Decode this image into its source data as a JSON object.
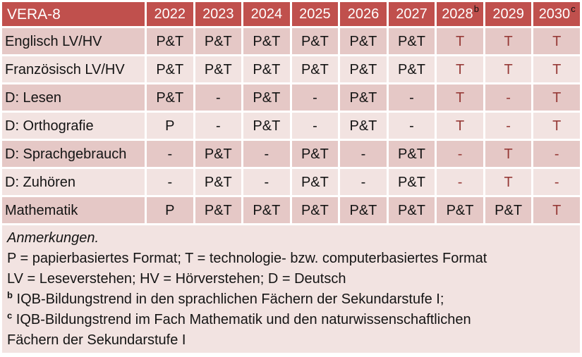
{
  "table": {
    "header": {
      "title": "VERA-8",
      "years": [
        {
          "label": "2022",
          "sup": ""
        },
        {
          "label": "2023",
          "sup": ""
        },
        {
          "label": "2024",
          "sup": ""
        },
        {
          "label": "2025",
          "sup": ""
        },
        {
          "label": "2026",
          "sup": ""
        },
        {
          "label": "2027",
          "sup": ""
        },
        {
          "label": "2028",
          "sup": "b"
        },
        {
          "label": "2029",
          "sup": ""
        },
        {
          "label": "2030",
          "sup": "c"
        }
      ]
    },
    "rows": [
      {
        "label": "Englisch LV/HV",
        "cells": [
          {
            "text": "P&T",
            "red": false
          },
          {
            "text": "P&T",
            "red": false
          },
          {
            "text": "P&T",
            "red": false
          },
          {
            "text": "P&T",
            "red": false
          },
          {
            "text": "P&T",
            "red": false
          },
          {
            "text": "P&T",
            "red": false
          },
          {
            "text": "T",
            "red": true
          },
          {
            "text": "T",
            "red": true
          },
          {
            "text": "T",
            "red": true
          }
        ]
      },
      {
        "label": "Französisch LV/HV",
        "cells": [
          {
            "text": "P&T",
            "red": false
          },
          {
            "text": "P&T",
            "red": false
          },
          {
            "text": "P&T",
            "red": false
          },
          {
            "text": "P&T",
            "red": false
          },
          {
            "text": "P&T",
            "red": false
          },
          {
            "text": "P&T",
            "red": false
          },
          {
            "text": "T",
            "red": true
          },
          {
            "text": "T",
            "red": true
          },
          {
            "text": "T",
            "red": true
          }
        ]
      },
      {
        "label": "D: Lesen",
        "cells": [
          {
            "text": "P&T",
            "red": false
          },
          {
            "text": "-",
            "red": false
          },
          {
            "text": "P&T",
            "red": false
          },
          {
            "text": "-",
            "red": false
          },
          {
            "text": "P&T",
            "red": false
          },
          {
            "text": "-",
            "red": false
          },
          {
            "text": "T",
            "red": true
          },
          {
            "text": "-",
            "red": true
          },
          {
            "text": "T",
            "red": true
          }
        ]
      },
      {
        "label": "D: Orthografie",
        "cells": [
          {
            "text": "P",
            "red": false
          },
          {
            "text": "-",
            "red": false
          },
          {
            "text": "P&T",
            "red": false
          },
          {
            "text": "-",
            "red": false
          },
          {
            "text": "P&T",
            "red": false
          },
          {
            "text": "-",
            "red": false
          },
          {
            "text": "T",
            "red": true
          },
          {
            "text": "-",
            "red": true
          },
          {
            "text": "T",
            "red": true
          }
        ]
      },
      {
        "label": "D: Sprachgebrauch",
        "cells": [
          {
            "text": "-",
            "red": false
          },
          {
            "text": "P&T",
            "red": false
          },
          {
            "text": "-",
            "red": false
          },
          {
            "text": "P&T",
            "red": false
          },
          {
            "text": "-",
            "red": false
          },
          {
            "text": "P&T",
            "red": false
          },
          {
            "text": "-",
            "red": true
          },
          {
            "text": "T",
            "red": true
          },
          {
            "text": "-",
            "red": true
          }
        ]
      },
      {
        "label": "D: Zuhören",
        "cells": [
          {
            "text": "-",
            "red": false
          },
          {
            "text": "P&T",
            "red": false
          },
          {
            "text": "-",
            "red": false
          },
          {
            "text": "P&T",
            "red": false
          },
          {
            "text": "-",
            "red": false
          },
          {
            "text": "P&T",
            "red": false
          },
          {
            "text": "-",
            "red": true
          },
          {
            "text": "T",
            "red": true
          },
          {
            "text": "-",
            "red": true
          }
        ]
      },
      {
        "label": "Mathematik",
        "cells": [
          {
            "text": "P",
            "red": false
          },
          {
            "text": "P&T",
            "red": false
          },
          {
            "text": "P&T",
            "red": false
          },
          {
            "text": "P&T",
            "red": false
          },
          {
            "text": "P&T",
            "red": false
          },
          {
            "text": "P&T",
            "red": false
          },
          {
            "text": "P&T",
            "red": false
          },
          {
            "text": "P&T",
            "red": false
          },
          {
            "text": "T",
            "red": true
          }
        ]
      }
    ]
  },
  "notes": {
    "heading": "Anmerkungen.",
    "lines": [
      {
        "sup": "",
        "text": "P = papierbasiertes Format; T = technologie- bzw. computerbasiertes Format"
      },
      {
        "sup": "",
        "text": "LV = Leseverstehen; HV = Hörverstehen; D = Deutsch"
      },
      {
        "sup": "b",
        "text": "IQB-Bildungstrend in den sprachlichen Fächern der Sekundarstufe I;"
      },
      {
        "sup": "c",
        "text": "IQB-Bildungstrend im Fach Mathematik und den naturwissenschaftlichen"
      },
      {
        "sup": "",
        "text": "Fächern der Sekundarstufe I"
      }
    ]
  },
  "colors": {
    "header_bg": "#C0504D",
    "band_dark": "#E5C8C6",
    "band_light": "#F2E3E1",
    "highlight_text": "#963A37",
    "header_text": "#FFFFFF",
    "body_text": "#141414"
  }
}
